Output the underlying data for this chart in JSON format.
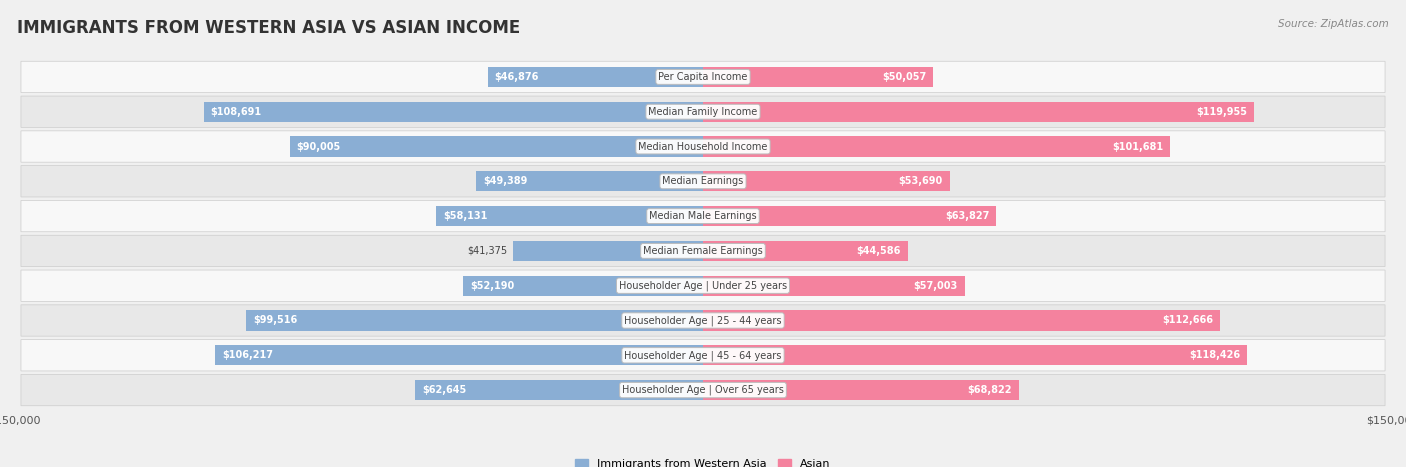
{
  "title": "IMMIGRANTS FROM WESTERN ASIA VS ASIAN INCOME",
  "source": "Source: ZipAtlas.com",
  "categories": [
    "Per Capita Income",
    "Median Family Income",
    "Median Household Income",
    "Median Earnings",
    "Median Male Earnings",
    "Median Female Earnings",
    "Householder Age | Under 25 years",
    "Householder Age | 25 - 44 years",
    "Householder Age | 45 - 64 years",
    "Householder Age | Over 65 years"
  ],
  "western_asia": [
    46876,
    108691,
    90005,
    49389,
    58131,
    41375,
    52190,
    99516,
    106217,
    62645
  ],
  "asian": [
    50057,
    119955,
    101681,
    53690,
    63827,
    44586,
    57003,
    112666,
    118426,
    68822
  ],
  "western_asia_color": "#8aaed4",
  "asian_color": "#f4829e",
  "bar_height": 0.58,
  "max_val": 150000,
  "background_color": "#f0f0f0",
  "row_bg_even": "#f8f8f8",
  "row_bg_odd": "#e8e8e8",
  "title_fontsize": 12,
  "source_fontsize": 7.5,
  "tick_fontsize": 8,
  "value_fontsize": 7,
  "cat_fontsize": 7,
  "legend_fontsize": 8,
  "western_asia_label": "Immigrants from Western Asia",
  "asian_label": "Asian",
  "inside_label_threshold": 0.28
}
